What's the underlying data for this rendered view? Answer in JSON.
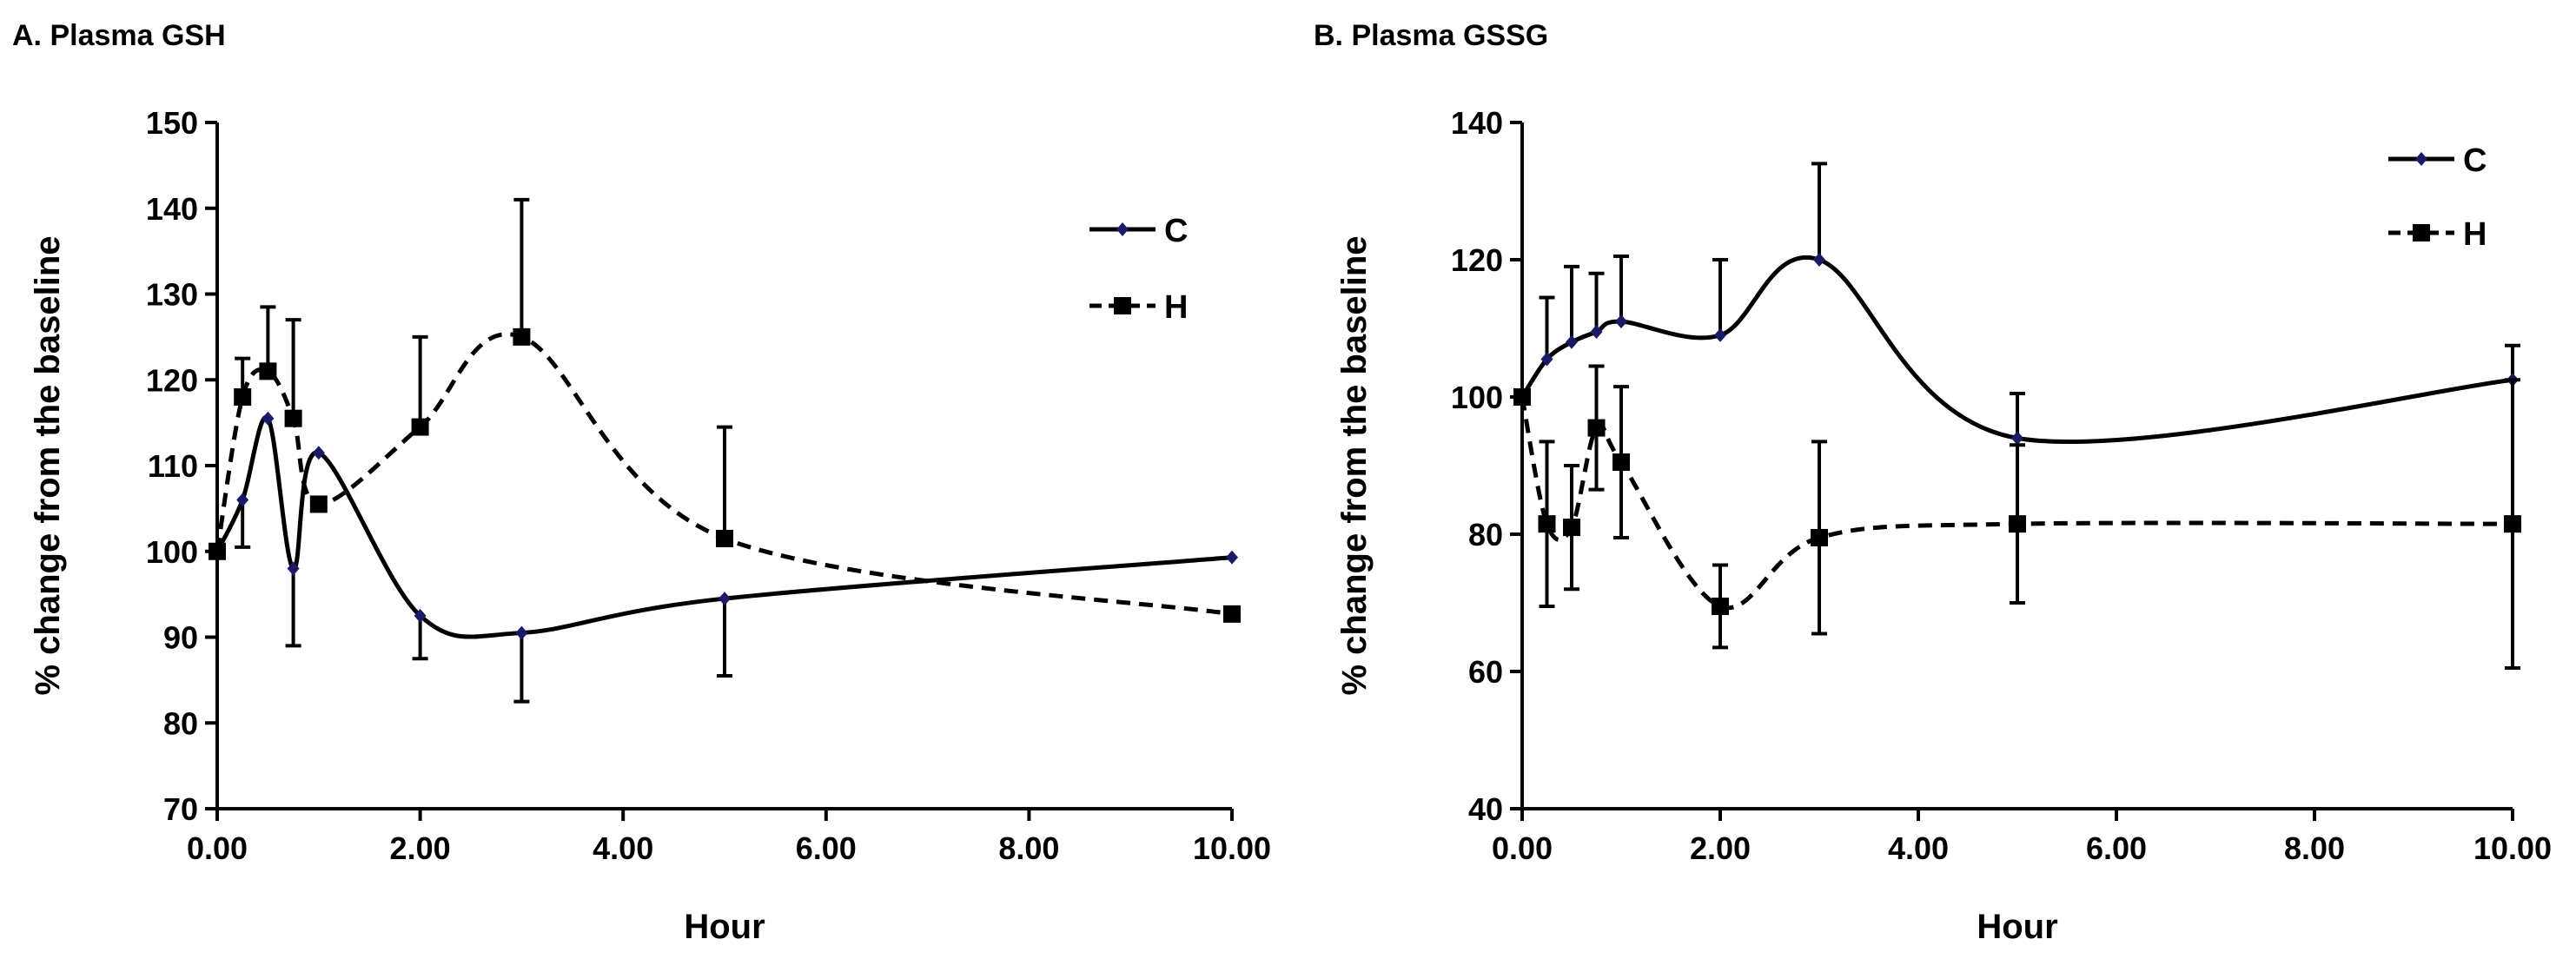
{
  "chart_data": [
    {
      "type": "line",
      "title": "A. Plasma GSH",
      "xlabel": "Hour",
      "ylabel": "% change from the baseline",
      "xlim": [
        0,
        10
      ],
      "ylim": [
        70,
        150
      ],
      "xticks": [
        0,
        2,
        4,
        6,
        8,
        10
      ],
      "xtick_labels": [
        "0.00",
        "2.00",
        "4.00",
        "6.00",
        "8.00",
        "10.00"
      ],
      "yticks": [
        70,
        80,
        90,
        100,
        110,
        120,
        130,
        140,
        150
      ],
      "ytick_labels": [
        "70",
        "80",
        "90",
        "100",
        "110",
        "120",
        "130",
        "140",
        "150"
      ],
      "grid": false,
      "legend_position": "top-right",
      "series": [
        {
          "name": "C",
          "style": "solid",
          "marker": "diamond",
          "color": "#000000",
          "marker_color": "#1a1a66",
          "error_side": "lower",
          "x": [
            0,
            0.25,
            0.5,
            0.75,
            1,
            2,
            3,
            5,
            10
          ],
          "values": [
            100,
            106,
            115.5,
            98,
            111.5,
            92.5,
            90.5,
            94.5,
            99.3
          ],
          "errors": [
            0,
            5.5,
            0,
            9,
            0,
            5,
            8,
            9,
            0
          ]
        },
        {
          "name": "H",
          "style": "dashed",
          "marker": "square",
          "color": "#000000",
          "marker_color": "#000000",
          "error_side": "upper",
          "x": [
            0,
            0.25,
            0.5,
            0.75,
            1,
            2,
            3,
            5,
            10
          ],
          "values": [
            100,
            118,
            121,
            115.5,
            105.5,
            114.5,
            125,
            101.5,
            92.7
          ],
          "errors": [
            0,
            4.5,
            7.5,
            11.5,
            0,
            10.5,
            16,
            13,
            0
          ]
        }
      ]
    },
    {
      "type": "line",
      "title": "B. Plasma GSSG",
      "xlabel": "Hour",
      "ylabel": "% change from the baseline",
      "xlim": [
        0,
        10
      ],
      "ylim": [
        40,
        140
      ],
      "xticks": [
        0,
        2,
        4,
        6,
        8,
        10
      ],
      "xtick_labels": [
        "0.00",
        "2.00",
        "4.00",
        "6.00",
        "8.00",
        "10.00"
      ],
      "yticks": [
        40,
        60,
        80,
        100,
        120,
        140
      ],
      "ytick_labels": [
        "40",
        "60",
        "80",
        "100",
        "120",
        "140"
      ],
      "grid": false,
      "legend_position": "top-right",
      "series": [
        {
          "name": "C",
          "style": "solid",
          "marker": "diamond",
          "color": "#000000",
          "marker_color": "#1a1a66",
          "error_side": "upper",
          "x": [
            0,
            0.25,
            0.5,
            0.75,
            1,
            2,
            3,
            5,
            10
          ],
          "values": [
            100,
            105.5,
            108,
            109.5,
            111,
            109,
            120,
            94,
            102.5
          ],
          "errors": [
            0,
            9,
            11,
            8.5,
            9.5,
            11,
            14,
            6.5,
            5
          ]
        },
        {
          "name": "H",
          "style": "dashed",
          "marker": "square",
          "color": "#000000",
          "marker_color": "#000000",
          "error_side": "both",
          "x": [
            0,
            0.25,
            0.5,
            0.75,
            1,
            2,
            3,
            5,
            10
          ],
          "values": [
            100,
            81.5,
            81,
            95.5,
            90.5,
            69.5,
            79.5,
            81.5,
            81.5
          ],
          "errors": [
            0,
            12,
            9,
            9,
            11,
            6,
            14,
            11.5,
            21
          ]
        }
      ]
    }
  ]
}
